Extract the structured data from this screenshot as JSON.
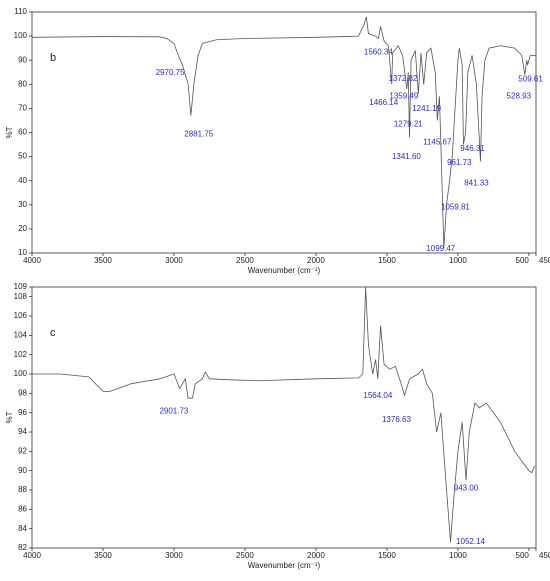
{
  "chart_data": [
    {
      "type": "line",
      "panel_label": "b",
      "xlabel": "Wavenumber (cm⁻¹)",
      "ylabel": "%T",
      "color": "#555555",
      "annotation_color": "#2a2ad0",
      "xlim": [
        4000,
        450
      ],
      "ylim": [
        10,
        110
      ],
      "xticks": [
        4000,
        3500,
        3000,
        2500,
        2000,
        1500,
        1000,
        500,
        450
      ],
      "yticks": [
        10,
        20,
        30,
        40,
        50,
        60,
        70,
        80,
        90,
        100,
        110
      ],
      "x": [
        4000,
        3500,
        3100,
        3050,
        3000,
        2970,
        2940,
        2900,
        2881,
        2860,
        2830,
        2800,
        2700,
        2500,
        2000,
        1800,
        1700,
        1660,
        1645,
        1630,
        1580,
        1560,
        1545,
        1520,
        1490,
        1466,
        1460,
        1420,
        1390,
        1372,
        1360,
        1350,
        1341,
        1330,
        1300,
        1279,
        1260,
        1241,
        1220,
        1190,
        1160,
        1145,
        1130,
        1099,
        1080,
        1059,
        1040,
        1020,
        1000,
        990,
        970,
        961,
        946,
        930,
        900,
        870,
        841,
        830,
        810,
        780,
        700,
        600,
        550,
        529,
        515,
        509,
        490,
        450
      ],
      "values": [
        99.5,
        99.8,
        99.7,
        99,
        97,
        92,
        88,
        80,
        67,
        80,
        92,
        97,
        98.5,
        99,
        99.5,
        99.8,
        100,
        105,
        108,
        101,
        100,
        99,
        104,
        98,
        96,
        80,
        93,
        96,
        92,
        84,
        78,
        85,
        58,
        90,
        94,
        76,
        93,
        80,
        93,
        95,
        85,
        65,
        75,
        12,
        30,
        40,
        50,
        70,
        90,
        95,
        88,
        55,
        60,
        85,
        92,
        80,
        48,
        75,
        90,
        95,
        96,
        95,
        92,
        84,
        90,
        88,
        92,
        92
      ],
      "annotations": [
        {
          "x": 2970.75,
          "label": "2970.75"
        },
        {
          "x": 2881.75,
          "label": "2881.75"
        },
        {
          "x": 1560.34,
          "label": "1560.34"
        },
        {
          "x": 1372.82,
          "label": "1372.82"
        },
        {
          "x": 1466.14,
          "label": "1466.14"
        },
        {
          "x": 1359.49,
          "label": "1359.49"
        },
        {
          "x": 1241.19,
          "label": "1241.19"
        },
        {
          "x": 1279.21,
          "label": "1279.21"
        },
        {
          "x": 1145.67,
          "label": "1145.67"
        },
        {
          "x": 1341.6,
          "label": "1341.60"
        },
        {
          "x": 946.31,
          "label": "946.31"
        },
        {
          "x": 961.73,
          "label": "961.73"
        },
        {
          "x": 841.33,
          "label": "841.33"
        },
        {
          "x": 1059.81,
          "label": "1059.81"
        },
        {
          "x": 1099.47,
          "label": "1099.47"
        },
        {
          "x": 509.61,
          "label": "509.61"
        },
        {
          "x": 528.93,
          "label": "528.93"
        }
      ]
    },
    {
      "type": "line",
      "panel_label": "c",
      "xlabel": "Wavenumber (cm⁻¹)",
      "ylabel": "%T",
      "color": "#555555",
      "annotation_color": "#2a2ad0",
      "xlim": [
        4000,
        450
      ],
      "ylim": [
        82,
        109
      ],
      "xticks": [
        4000,
        3500,
        3000,
        2500,
        2000,
        1500,
        1000,
        500,
        450
      ],
      "yticks": [
        82,
        84,
        86,
        88,
        90,
        92,
        94,
        96,
        98,
        100,
        102,
        104,
        106,
        108,
        109
      ],
      "x": [
        4000,
        3800,
        3600,
        3500,
        3450,
        3300,
        3100,
        3000,
        2960,
        2920,
        2901,
        2870,
        2850,
        2800,
        2780,
        2750,
        2600,
        2400,
        2000,
        1700,
        1670,
        1650,
        1630,
        1600,
        1580,
        1564,
        1545,
        1520,
        1480,
        1440,
        1400,
        1376,
        1340,
        1280,
        1250,
        1220,
        1180,
        1150,
        1120,
        1100,
        1080,
        1052,
        1030,
        1000,
        970,
        943,
        920,
        880,
        850,
        800,
        750,
        700,
        650,
        600,
        550,
        500,
        480,
        460
      ],
      "values": [
        100,
        100,
        99.7,
        98.2,
        98.2,
        99,
        99.5,
        100,
        98.5,
        99.5,
        97.5,
        97.5,
        99,
        99.5,
        100.2,
        99.5,
        99.4,
        99.3,
        99.5,
        99.6,
        100,
        109,
        103,
        100,
        101.5,
        99.5,
        105,
        101,
        100.5,
        100.8,
        99,
        97.8,
        99.5,
        100,
        100.5,
        99,
        98,
        94,
        96,
        92,
        88,
        82.6,
        87,
        92,
        95,
        89,
        94,
        97,
        96.5,
        97,
        96,
        95,
        93.5,
        92,
        91,
        90,
        89.8,
        90.5
      ],
      "annotations": [
        {
          "x": 2901.73,
          "label": "2901.73"
        },
        {
          "x": 1564.04,
          "label": "1564.04"
        },
        {
          "x": 1376.63,
          "label": "1376.63"
        },
        {
          "x": 943.0,
          "label": "943.00"
        },
        {
          "x": 1052.14,
          "label": "1052.14"
        }
      ]
    }
  ]
}
